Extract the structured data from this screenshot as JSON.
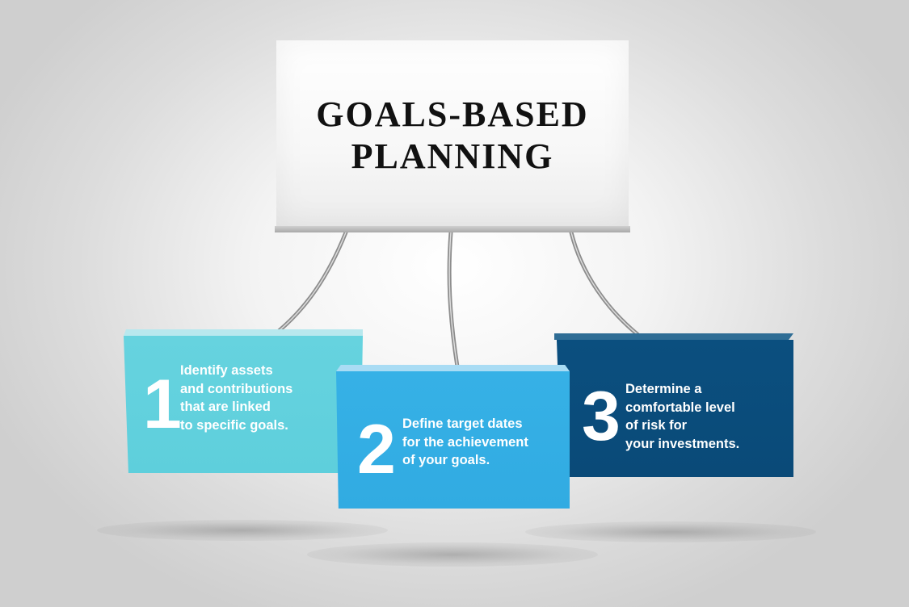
{
  "title": {
    "line1": "GOALS-BASED",
    "line2": "PLANNING"
  },
  "steps": [
    {
      "number": "1",
      "lines": [
        "Identify assets",
        "and contributions",
        "that are linked",
        "to specific goals."
      ],
      "color": "#5ecfdc"
    },
    {
      "number": "2",
      "lines": [
        "Define target dates",
        "for the achievement",
        "of your goals."
      ],
      "color": "#31abe2"
    },
    {
      "number": "3",
      "lines": [
        "Determine a",
        "comfortable level",
        "of risk for",
        "your investments."
      ],
      "color": "#0a4a78"
    }
  ],
  "colors": {
    "sign": "#ffffff",
    "title_text": "#111111",
    "box_text": "#ffffff",
    "wire": "#9a9a9a"
  }
}
